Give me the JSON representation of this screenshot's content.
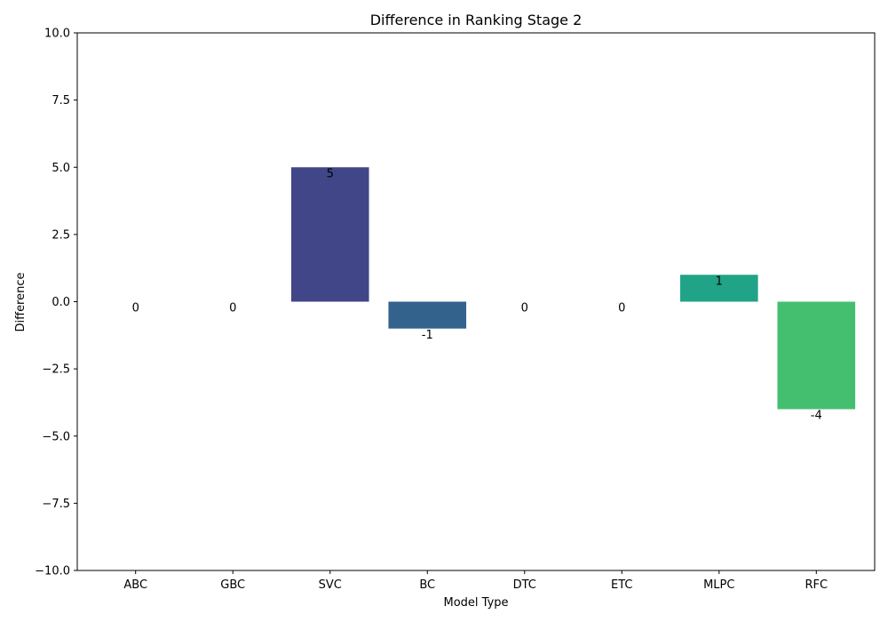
{
  "chart_data": {
    "type": "bar",
    "title": "Difference in Ranking  Stage 2",
    "xlabel": "Model Type",
    "ylabel": "Difference",
    "categories": [
      "ABC",
      "GBC",
      "SVC",
      "BC",
      "DTC",
      "ETC",
      "MLPC",
      "RFC"
    ],
    "values": [
      0,
      0,
      5,
      -1,
      0,
      0,
      1,
      -4
    ],
    "data_labels": [
      "0",
      "0",
      "5",
      "-1",
      "0",
      "0",
      "1",
      "-4"
    ],
    "colors": [
      "#482677",
      "#453781",
      "#404688",
      "#33638d",
      "#2a788e",
      "#218f8d",
      "#20a386",
      "#44bf70"
    ],
    "ylim": [
      -10,
      10
    ],
    "yticks": [
      -10,
      -7.5,
      -5,
      -2.5,
      0,
      2.5,
      5,
      7.5,
      10
    ],
    "ytick_labels": [
      "−10.0",
      "−7.5",
      "−5.0",
      "−2.5",
      "0.0",
      "2.5",
      "5.0",
      "7.5",
      "10.0"
    ],
    "grid": false,
    "legend": "none"
  }
}
